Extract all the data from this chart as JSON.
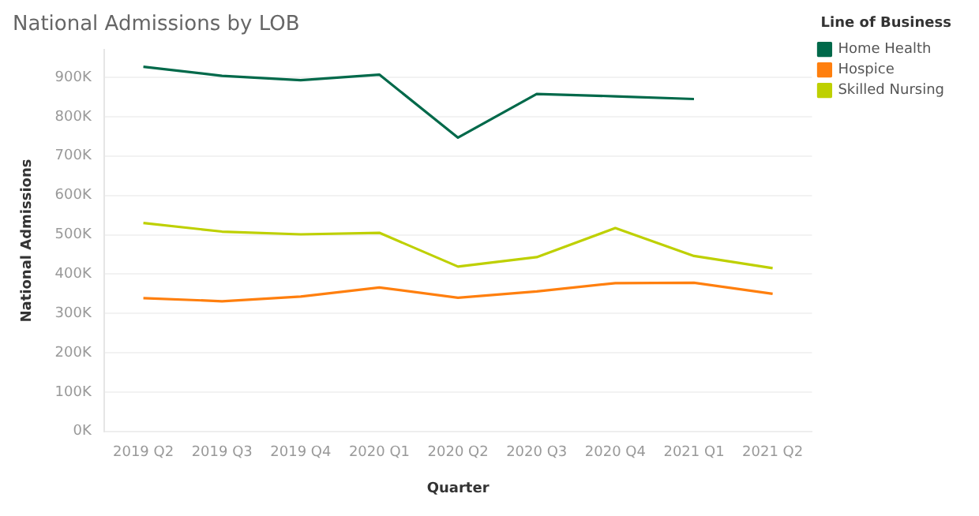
{
  "chart_data": {
    "type": "line",
    "title": "National Admissions by LOB",
    "xlabel": "Quarter",
    "ylabel": "National Admissions",
    "legend_title": "Line of Business",
    "categories": [
      "2019 Q2",
      "2019 Q3",
      "2019 Q4",
      "2020 Q1",
      "2020 Q2",
      "2020 Q3",
      "2020 Q4",
      "2021 Q1",
      "2021 Q2"
    ],
    "series": [
      {
        "name": "Home Health",
        "color": "#00694a",
        "values": [
          927000,
          904000,
          893000,
          907000,
          747000,
          858000,
          852000,
          845000,
          null
        ]
      },
      {
        "name": "Hospice",
        "color": "#ff7f0e",
        "values": [
          339000,
          331000,
          343000,
          366000,
          340000,
          356000,
          377000,
          378000,
          350000
        ]
      },
      {
        "name": "Skilled Nursing",
        "color": "#bed000",
        "values": [
          530000,
          508000,
          501000,
          505000,
          419000,
          443000,
          517000,
          446000,
          415000
        ]
      }
    ],
    "ylim": [
      0,
      970000
    ],
    "yticks": [
      {
        "value": 0,
        "label": "0K"
      },
      {
        "value": 100000,
        "label": "100K"
      },
      {
        "value": 200000,
        "label": "200K"
      },
      {
        "value": 300000,
        "label": "300K"
      },
      {
        "value": 400000,
        "label": "400K"
      },
      {
        "value": 500000,
        "label": "500K"
      },
      {
        "value": 600000,
        "label": "600K"
      },
      {
        "value": 700000,
        "label": "700K"
      },
      {
        "value": 800000,
        "label": "800K"
      },
      {
        "value": 900000,
        "label": "900K"
      }
    ],
    "grid": "y",
    "legend": "top right",
    "marker": "none",
    "line_style": "solid"
  }
}
